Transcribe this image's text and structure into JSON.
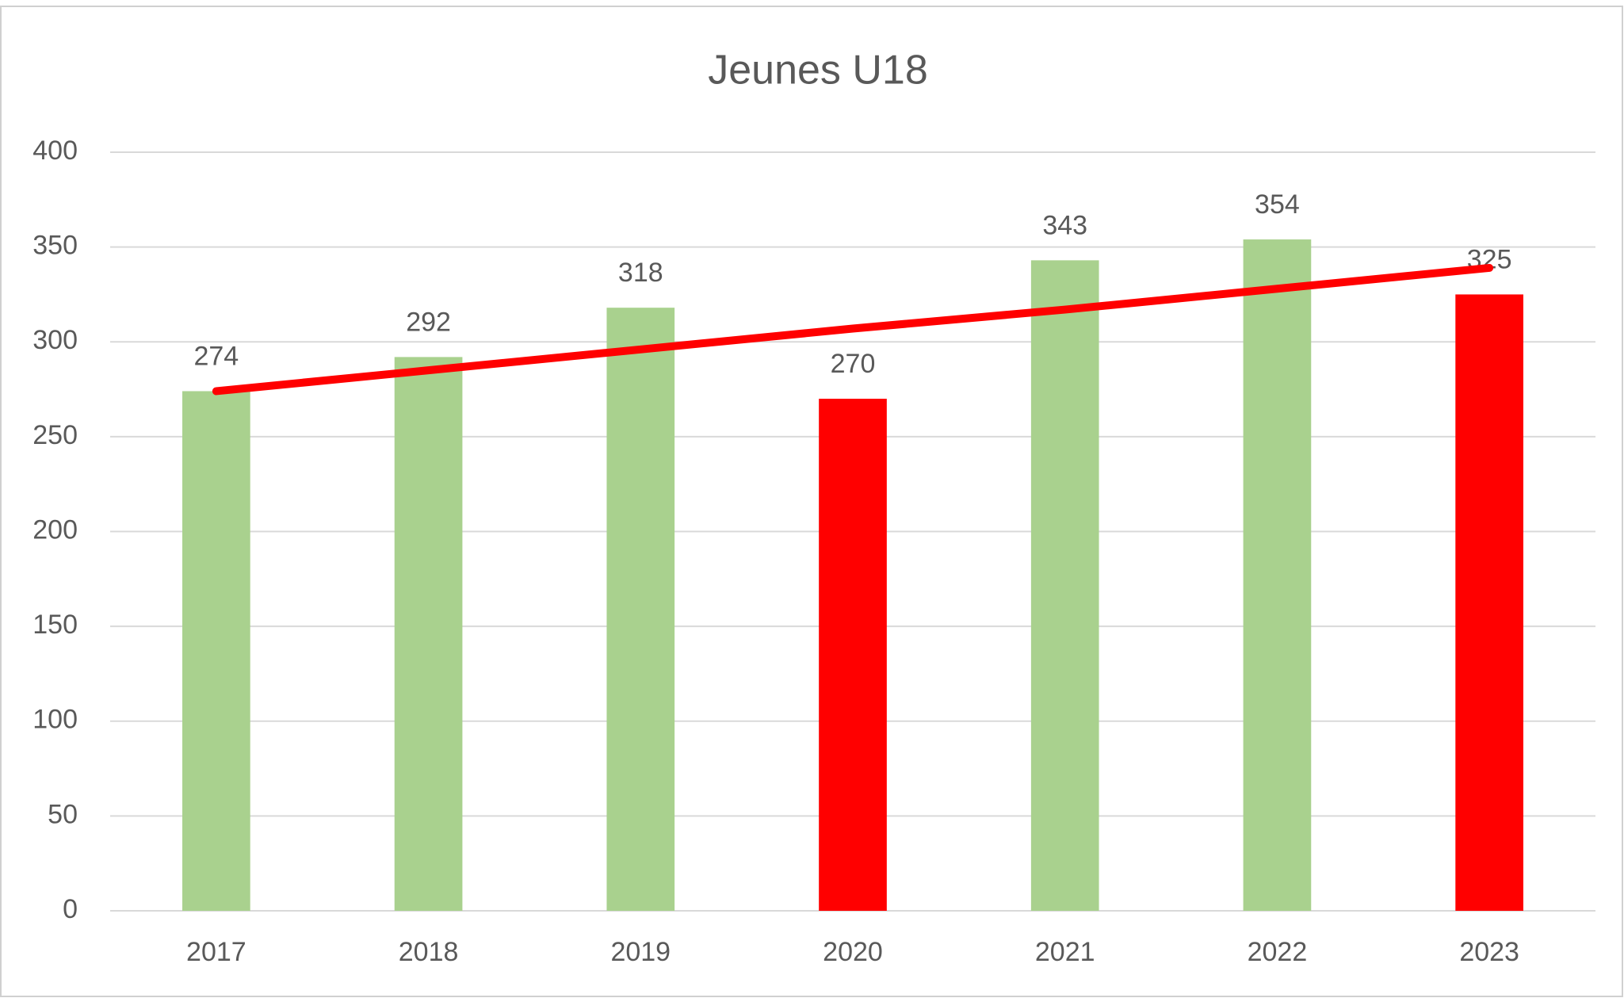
{
  "chart_data": {
    "type": "bar",
    "title": "Jeunes U18",
    "categories": [
      "2017",
      "2018",
      "2019",
      "2020",
      "2021",
      "2022",
      "2023"
    ],
    "values": [
      274,
      292,
      318,
      270,
      343,
      354,
      325
    ],
    "colors": [
      "#a9d18e",
      "#a9d18e",
      "#a9d18e",
      "#ff0000",
      "#a9d18e",
      "#a9d18e",
      "#ff0000"
    ],
    "trendline": {
      "color": "#ff0000",
      "values": [
        274,
        285,
        296,
        307,
        317,
        328,
        339
      ]
    },
    "ylim": [
      0,
      400
    ],
    "yticks": [
      0,
      50,
      100,
      150,
      200,
      250,
      300,
      350,
      400
    ],
    "grid": true
  }
}
